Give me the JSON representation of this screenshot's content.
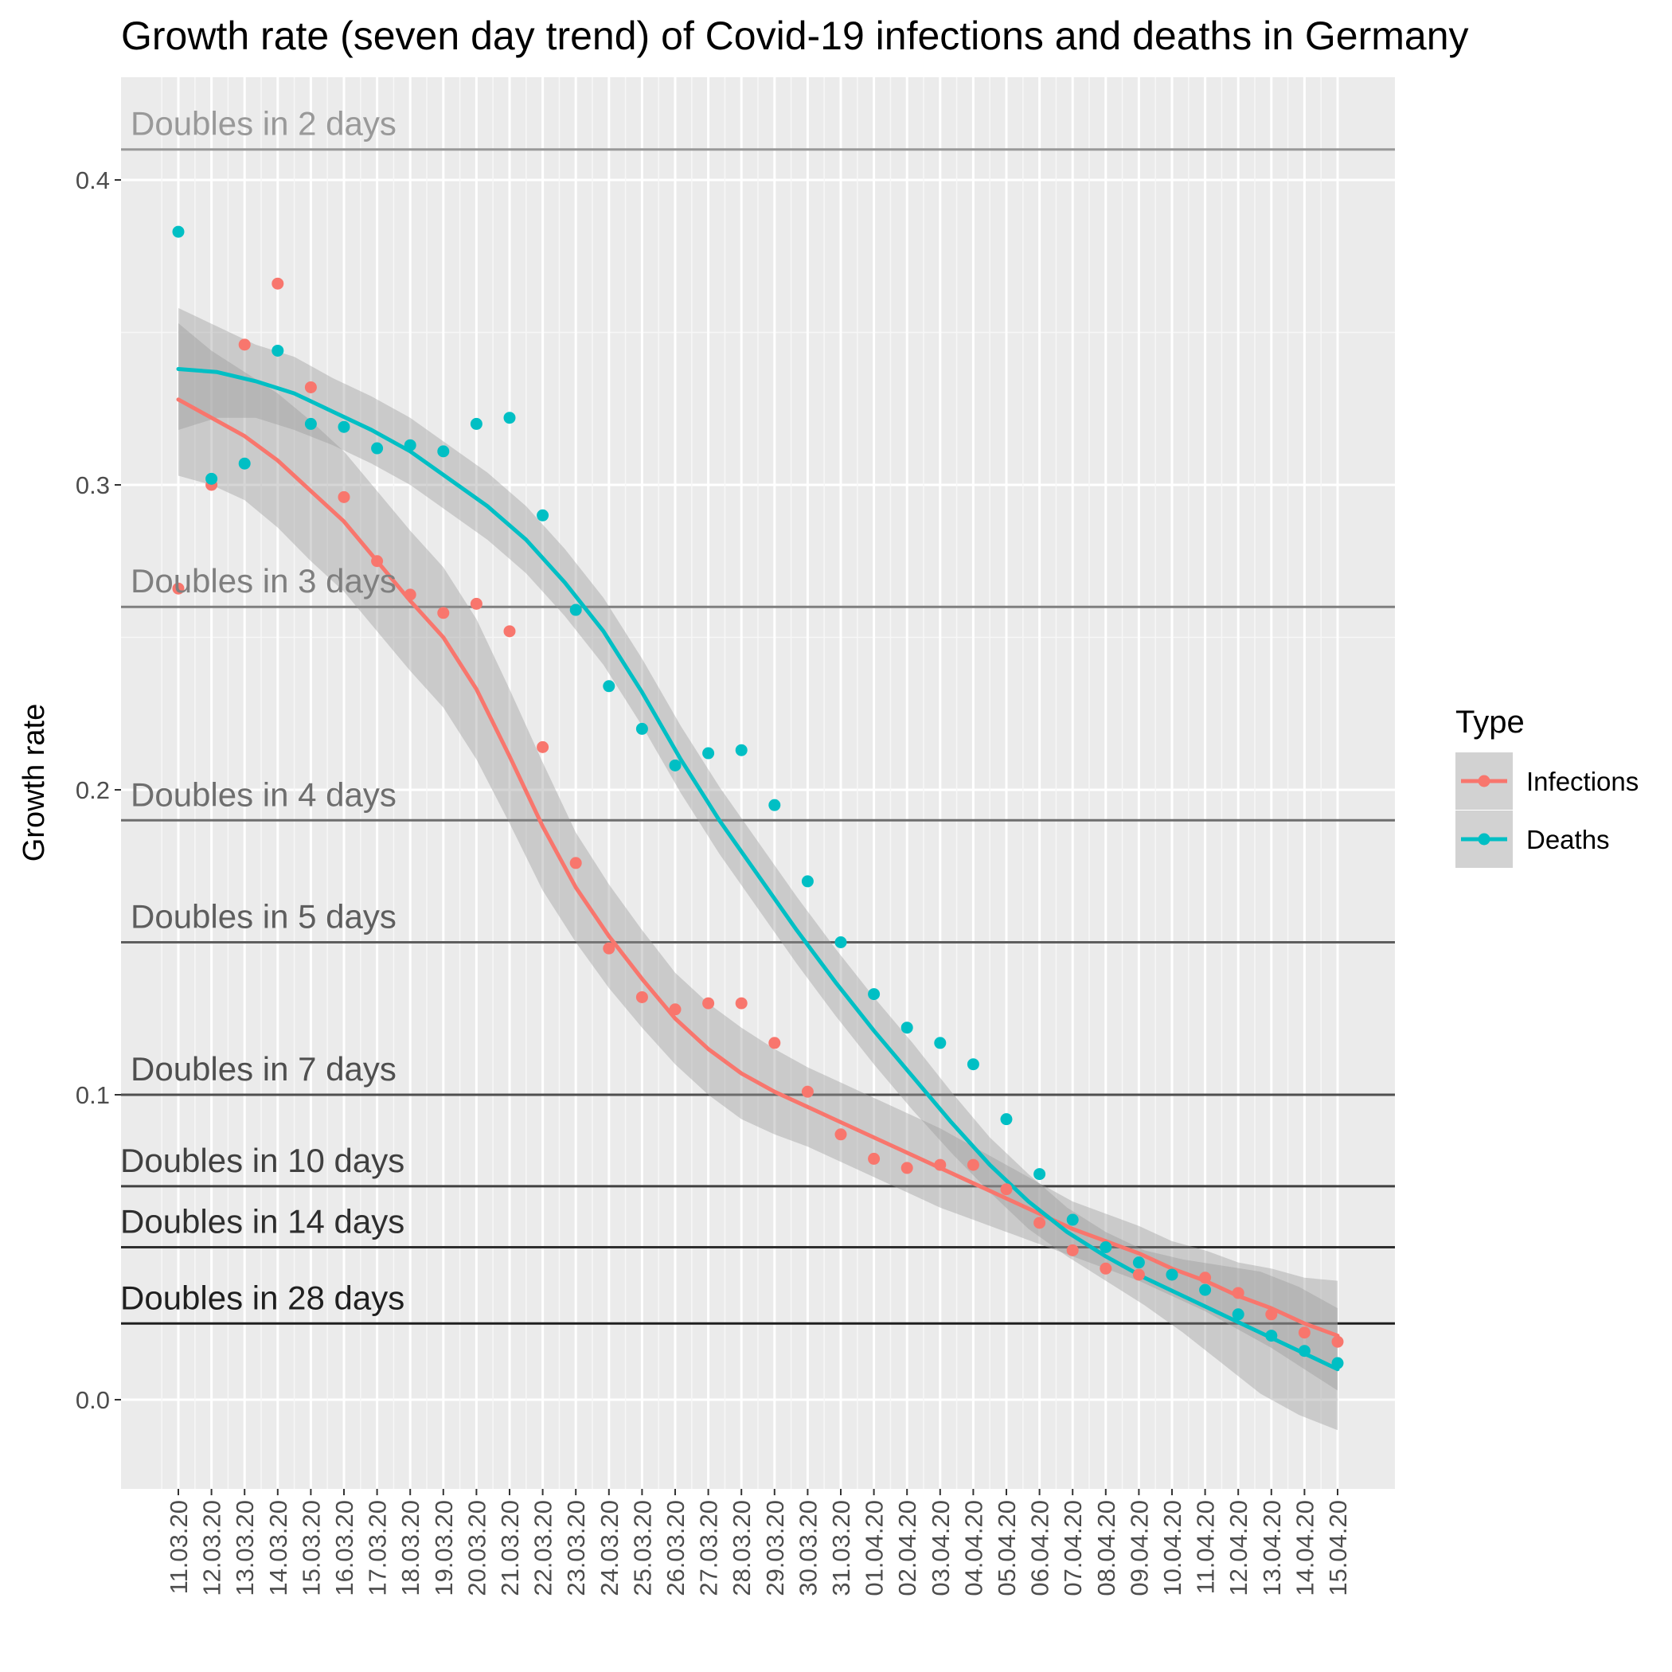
{
  "chart_data": {
    "type": "scatter",
    "title": "Growth rate (seven day trend) of Covid-19 infections and deaths in Germany",
    "xlabel": "",
    "ylabel": "Growth rate",
    "ylim": [
      -0.032,
      0.432
    ],
    "yticks": [
      "0.0",
      "0.1",
      "0.2",
      "0.3",
      "0.4"
    ],
    "grid": true,
    "legend_position": "right",
    "legend_title": "Type",
    "x": [
      "11.03.20",
      "12.03.20",
      "13.03.20",
      "14.03.20",
      "15.03.20",
      "16.03.20",
      "17.03.20",
      "18.03.20",
      "19.03.20",
      "20.03.20",
      "21.03.20",
      "22.03.20",
      "23.03.20",
      "24.03.20",
      "25.03.20",
      "26.03.20",
      "27.03.20",
      "28.03.20",
      "29.03.20",
      "30.03.20",
      "31.03.20",
      "01.04.20",
      "02.04.20",
      "03.04.20",
      "04.04.20",
      "05.04.20",
      "06.04.20",
      "07.04.20",
      "08.04.20",
      "09.04.20",
      "10.04.20",
      "11.04.20",
      "12.04.20",
      "13.04.20",
      "14.04.20",
      "15.04.20"
    ],
    "series": [
      {
        "name": "Infections",
        "color": "#F8766D",
        "values": [
          0.266,
          0.3,
          0.346,
          0.366,
          0.332,
          0.296,
          0.275,
          0.264,
          0.258,
          0.261,
          0.252,
          0.214,
          0.176,
          0.148,
          0.132,
          0.128,
          0.13,
          0.13,
          0.117,
          0.101,
          0.087,
          0.079,
          0.076,
          0.077,
          0.077,
          0.069,
          0.058,
          0.049,
          0.043,
          0.041,
          0.041,
          0.04,
          0.035,
          0.028,
          0.022,
          0.019
        ],
        "smooth": [
          0.328,
          0.322,
          0.316,
          0.308,
          0.298,
          0.288,
          0.275,
          0.262,
          0.25,
          0.233,
          0.211,
          0.188,
          0.168,
          0.152,
          0.138,
          0.125,
          0.115,
          0.107,
          0.101,
          0.096,
          0.091,
          0.086,
          0.081,
          0.076,
          0.071,
          0.066,
          0.061,
          0.056,
          0.052,
          0.048,
          0.043,
          0.039,
          0.034,
          0.03,
          0.025,
          0.021
        ],
        "ci_lower": [
          0.303,
          0.3,
          0.295,
          0.286,
          0.275,
          0.265,
          0.252,
          0.239,
          0.227,
          0.21,
          0.189,
          0.167,
          0.15,
          0.135,
          0.122,
          0.11,
          0.1,
          0.092,
          0.087,
          0.083,
          0.078,
          0.073,
          0.068,
          0.063,
          0.059,
          0.055,
          0.051,
          0.047,
          0.043,
          0.039,
          0.034,
          0.029,
          0.023,
          0.017,
          0.01,
          0.003
        ],
        "ci_upper": [
          0.353,
          0.344,
          0.337,
          0.33,
          0.321,
          0.311,
          0.298,
          0.285,
          0.273,
          0.256,
          0.233,
          0.209,
          0.186,
          0.169,
          0.154,
          0.14,
          0.13,
          0.122,
          0.115,
          0.109,
          0.104,
          0.099,
          0.094,
          0.089,
          0.083,
          0.077,
          0.071,
          0.065,
          0.061,
          0.057,
          0.052,
          0.049,
          0.045,
          0.043,
          0.04,
          0.039
        ]
      },
      {
        "name": "Deaths",
        "color": "#00BFC4",
        "values": [
          0.383,
          0.302,
          0.307,
          0.344,
          0.32,
          0.319,
          0.312,
          0.313,
          0.311,
          0.32,
          0.322,
          0.29,
          0.259,
          0.234,
          0.22,
          0.208,
          0.212,
          0.213,
          0.195,
          0.17,
          0.15,
          0.133,
          0.122,
          0.117,
          0.11,
          0.092,
          0.074,
          0.059,
          0.05,
          0.045,
          0.041,
          0.036,
          0.028,
          0.021,
          0.016,
          0.012
        ],
        "smooth": [
          0.338,
          0.337,
          0.334,
          0.33,
          0.324,
          0.318,
          0.311,
          0.302,
          0.293,
          0.282,
          0.268,
          0.252,
          0.232,
          0.21,
          0.19,
          0.172,
          0.154,
          0.137,
          0.121,
          0.106,
          0.091,
          0.077,
          0.065,
          0.055,
          0.047,
          0.04,
          0.034,
          0.028,
          0.022,
          0.016,
          0.01
        ],
        "smooth_x_start": 0,
        "smooth_step": 1.1667,
        "ci_lower": [
          0.318,
          0.322,
          0.322,
          0.318,
          0.313,
          0.307,
          0.3,
          0.291,
          0.282,
          0.271,
          0.257,
          0.241,
          0.221,
          0.199,
          0.179,
          0.161,
          0.143,
          0.126,
          0.11,
          0.095,
          0.081,
          0.068,
          0.056,
          0.047,
          0.039,
          0.031,
          0.022,
          0.012,
          0.002,
          -0.005,
          -0.01
        ],
        "ci_upper": [
          0.358,
          0.352,
          0.346,
          0.342,
          0.335,
          0.329,
          0.322,
          0.313,
          0.304,
          0.293,
          0.279,
          0.263,
          0.243,
          0.221,
          0.201,
          0.183,
          0.165,
          0.148,
          0.132,
          0.117,
          0.101,
          0.086,
          0.074,
          0.063,
          0.055,
          0.049,
          0.046,
          0.044,
          0.042,
          0.037,
          0.03
        ]
      }
    ],
    "reference_lines": [
      {
        "label": "Doubles in 2 days",
        "value": 0.41,
        "color": "#999999"
      },
      {
        "label": "Doubles in 3 days",
        "value": 0.26,
        "color": "#7f7f7f"
      },
      {
        "label": "Doubles in 4 days",
        "value": 0.19,
        "color": "#6e6e6e"
      },
      {
        "label": "Doubles in 5 days",
        "value": 0.15,
        "color": "#5e5e5e"
      },
      {
        "label": "Doubles in 7 days",
        "value": 0.1,
        "color": "#4f4f4f"
      },
      {
        "label": "Doubles in 10 days",
        "value": 0.07,
        "color": "#404040"
      },
      {
        "label": "Doubles in 14 days",
        "value": 0.05,
        "color": "#2e2e2e"
      },
      {
        "label": "Doubles in 28 days",
        "value": 0.025,
        "color": "#1f1f1f"
      }
    ]
  }
}
